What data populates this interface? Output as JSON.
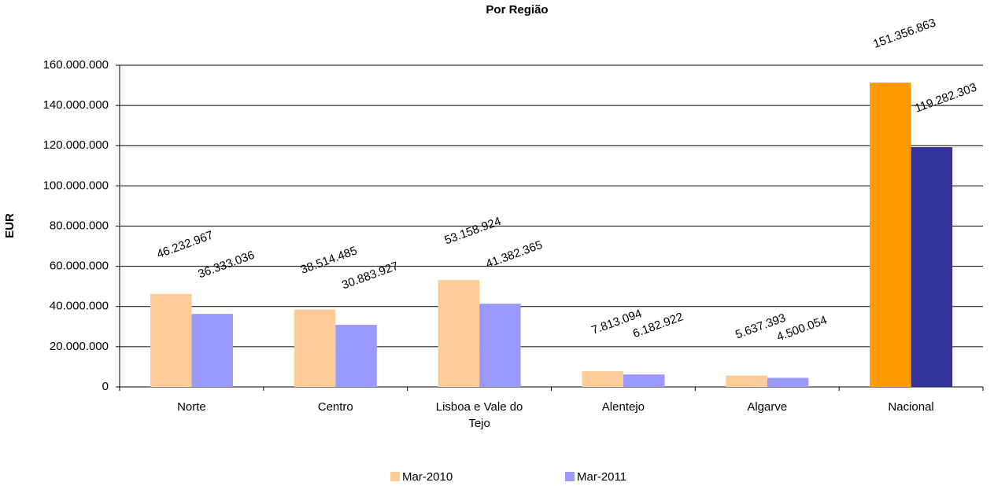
{
  "chart_data": {
    "type": "bar",
    "title": "Por Região",
    "y_label": "EUR",
    "categories": [
      "Norte",
      "Centro",
      "Lisboa e Vale do Tejo",
      "Alentejo",
      "Algarve",
      "Nacional"
    ],
    "series": [
      {
        "name": "Mar-2010",
        "color": "#ffcc99",
        "colors": [
          "#ffcc99",
          "#ffcc99",
          "#ffcc99",
          "#ffcc99",
          "#ffcc99",
          "#ff9900"
        ],
        "values": [
          46232967,
          38514485,
          53158924,
          7813094,
          5637393,
          151356863
        ],
        "value_labels": [
          "46.232.967",
          "38.514.485",
          "53.158.924",
          "7.813.094",
          "5.637.393",
          "151.356.863"
        ]
      },
      {
        "name": "Mar-2011",
        "color": "#9999ff",
        "colors": [
          "#9999ff",
          "#9999ff",
          "#9999ff",
          "#9999ff",
          "#9999ff",
          "#333399"
        ],
        "values": [
          36333036,
          30883927,
          41382365,
          6182922,
          4500054,
          119282303
        ],
        "value_labels": [
          "36.333.036",
          "30.883.927",
          "41.382.365",
          "6.182.922",
          "4.500.054",
          "119.282.303"
        ]
      }
    ],
    "ylim": [
      0,
      160000000
    ],
    "yticks": [
      0,
      {
        "value": 20000000,
        "label": "20.000.000"
      },
      {
        "value": 40000000,
        "label": "40.000.000"
      },
      {
        "value": 60000000,
        "label": "60.000.000"
      },
      {
        "value": 80000000,
        "label": "80.000.000"
      },
      {
        "value": 100000000,
        "label": "100.000.000"
      },
      {
        "value": 120000000,
        "label": "120.000.000"
      },
      {
        "value": 140000000,
        "label": "140.000.000"
      },
      {
        "value": 160000000,
        "label": "160.000.000"
      }
    ],
    "grid": true,
    "legend": "bottom"
  }
}
